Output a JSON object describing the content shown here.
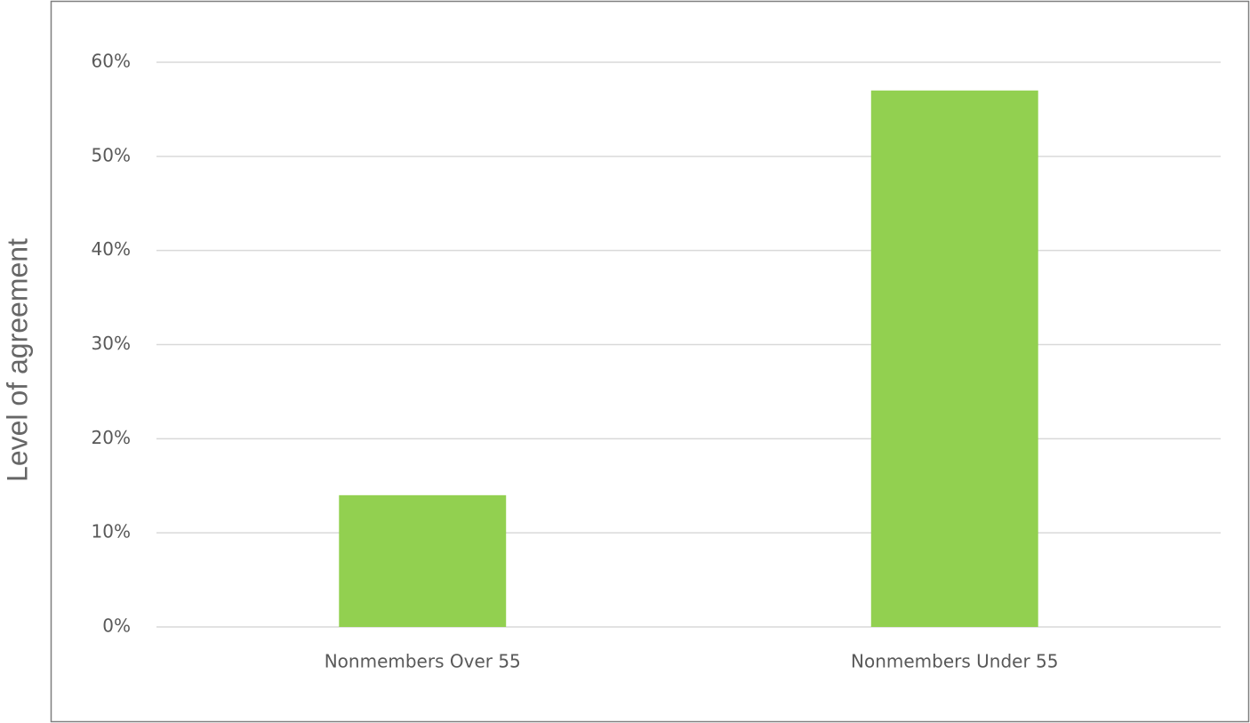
{
  "chart_data": {
    "type": "bar",
    "y_label": "Level of agreement",
    "categories": [
      "Nonmembers Over 55",
      "Nonmembers Under 55"
    ],
    "values": [
      14,
      57
    ],
    "color": "#92d050",
    "ylim": [
      0,
      60
    ],
    "yticks": [
      {
        "value": 0,
        "label": "0%"
      },
      {
        "value": 10,
        "label": "10%"
      },
      {
        "value": 20,
        "label": "20%"
      },
      {
        "value": 30,
        "label": "30%"
      },
      {
        "value": 40,
        "label": "40%"
      },
      {
        "value": 50,
        "label": "50%"
      },
      {
        "value": 60,
        "label": "60%"
      }
    ],
    "grid": true
  }
}
